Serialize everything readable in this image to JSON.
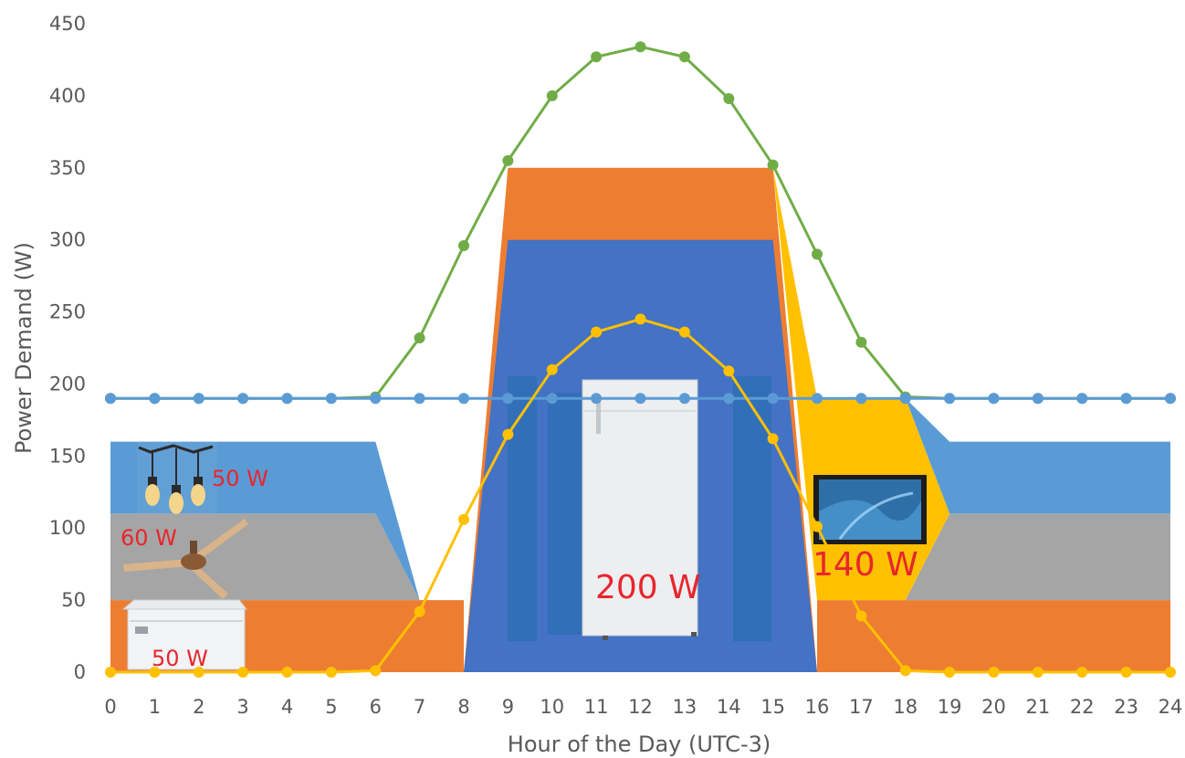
{
  "chart_data": {
    "type": "area",
    "xlabel": "Hour of the Day (UTC-3)",
    "ylabel": "Power Demand (W)",
    "xlim": [
      0,
      24
    ],
    "ylim": [
      0,
      450
    ],
    "x_ticks": [
      0,
      1,
      2,
      3,
      4,
      5,
      6,
      7,
      8,
      9,
      10,
      11,
      12,
      13,
      14,
      15,
      16,
      17,
      18,
      19,
      20,
      21,
      22,
      23,
      24
    ],
    "y_ticks": [
      0,
      50,
      100,
      150,
      200,
      250,
      300,
      350,
      400,
      450
    ],
    "grid": false,
    "stacked_areas": [
      {
        "appliance": "freezer",
        "color": "#ed7d31",
        "points": [
          [
            0,
            0
          ],
          [
            0,
            50
          ],
          [
            8,
            50
          ],
          [
            8,
            0
          ],
          [
            16,
            0
          ],
          [
            16,
            50
          ],
          [
            24,
            50
          ],
          [
            24,
            0
          ]
        ]
      },
      {
        "appliance": "ceiling-fan",
        "color": "#a5a5a5",
        "points": [
          [
            0,
            50
          ],
          [
            0,
            110
          ],
          [
            6,
            110
          ],
          [
            7,
            50
          ],
          [
            18,
            50
          ],
          [
            19,
            110
          ],
          [
            24,
            110
          ],
          [
            24,
            50
          ]
        ]
      },
      {
        "appliance": "string-lights",
        "color": "#5b9bd5",
        "points": [
          [
            0,
            110
          ],
          [
            0,
            160
          ],
          [
            6,
            160
          ],
          [
            7,
            50
          ],
          [
            6,
            110
          ],
          [
            0,
            110
          ]
        ]
      },
      {
        "appliance": "string-lights-evening",
        "color": "#5b9bd5",
        "points": [
          [
            18,
            190
          ],
          [
            19,
            160
          ],
          [
            24,
            160
          ],
          [
            24,
            110
          ],
          [
            19,
            110
          ],
          [
            18,
            190
          ]
        ]
      },
      {
        "appliance": "television",
        "color": "#ffc000",
        "points": [
          [
            15,
            350
          ],
          [
            16,
            190
          ],
          [
            18,
            190
          ],
          [
            19,
            110
          ],
          [
            18,
            50
          ],
          [
            16,
            50
          ]
        ]
      },
      {
        "appliance": "refrigerator-orange",
        "color": "#ed7d31",
        "points": [
          [
            8,
            0
          ],
          [
            9,
            350
          ],
          [
            15,
            350
          ],
          [
            16,
            0
          ]
        ]
      },
      {
        "appliance": "refrigerator",
        "color": "#4472c4",
        "points": [
          [
            8,
            0
          ],
          [
            9,
            300
          ],
          [
            15,
            300
          ],
          [
            16,
            0
          ]
        ]
      }
    ],
    "series": [
      {
        "color": "#70ad47",
        "x": [
          0,
          1,
          2,
          3,
          4,
          5,
          6,
          7,
          8,
          9,
          10,
          11,
          12,
          13,
          14,
          15,
          16,
          17,
          18,
          19,
          20,
          21,
          22,
          23,
          24
        ],
        "values": [
          190,
          190,
          190,
          190,
          190,
          190,
          191,
          232,
          296,
          355,
          400,
          427,
          434,
          427,
          398,
          352,
          290,
          229,
          191,
          190,
          190,
          190,
          190,
          190,
          190
        ]
      },
      {
        "color": "#5b9bd5",
        "x": [
          0,
          1,
          2,
          3,
          4,
          5,
          6,
          7,
          8,
          9,
          10,
          11,
          12,
          13,
          14,
          15,
          16,
          17,
          18,
          19,
          20,
          21,
          22,
          23,
          24
        ],
        "values": [
          190,
          190,
          190,
          190,
          190,
          190,
          190,
          190,
          190,
          190,
          190,
          190,
          190,
          190,
          190,
          190,
          190,
          190,
          190,
          190,
          190,
          190,
          190,
          190,
          190
        ]
      },
      {
        "color": "#ffc000",
        "x": [
          0,
          1,
          2,
          3,
          4,
          5,
          6,
          7,
          8,
          9,
          10,
          11,
          12,
          13,
          14,
          15,
          16,
          17,
          18,
          19,
          20,
          21,
          22,
          23,
          24
        ],
        "values": [
          0,
          0,
          0,
          0,
          0,
          0,
          1,
          42,
          106,
          165,
          210,
          236,
          245,
          236,
          209,
          162,
          101,
          39,
          1,
          0,
          0,
          0,
          0,
          0,
          0
        ]
      }
    ],
    "annotations": [
      {
        "text": "50 W",
        "appliance": "string-lights"
      },
      {
        "text": "60 W",
        "appliance": "ceiling-fan"
      },
      {
        "text": "50 W",
        "appliance": "freezer"
      },
      {
        "text": "200 W",
        "appliance": "refrigerator"
      },
      {
        "text": "140 W",
        "appliance": "television"
      }
    ],
    "colors": {
      "axis": "#595959",
      "label": "#e8262d"
    }
  }
}
